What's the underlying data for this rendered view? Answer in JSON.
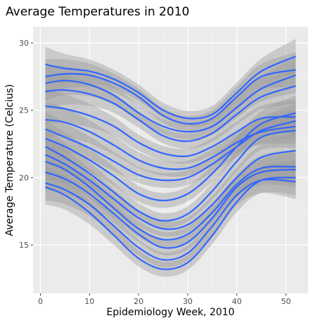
{
  "chart_data": {
    "type": "line",
    "title": "Average Temperatures in 2010",
    "xlabel": "Epidemiology Week, 2010",
    "ylabel": "Average Temperature (Celcius)",
    "xlim": [
      -1.5,
      54.5
    ],
    "ylim": [
      11.4,
      31.2
    ],
    "xticks": [
      0,
      10,
      20,
      30,
      40,
      50
    ],
    "yticks": [
      15,
      20,
      25,
      30
    ],
    "grid": true,
    "legend": "none",
    "colors": {
      "panel": "#ebebeb",
      "grid_major": "#ffffff",
      "line": "#3366ff",
      "ribbon": "#999999",
      "tick_label": "#4d4d4d"
    },
    "x": [
      1,
      5,
      10,
      15,
      20,
      25,
      30,
      35,
      40,
      45,
      52
    ],
    "series": [
      {
        "values": [
          28.4,
          28.1,
          27.9,
          27.3,
          26.3,
          25.0,
          24.4,
          24.7,
          26.3,
          27.9,
          29.0
        ]
      },
      {
        "values": [
          27.5,
          27.7,
          27.6,
          27.0,
          26.0,
          24.6,
          24.0,
          24.4,
          26.0,
          27.5,
          28.0
        ]
      },
      {
        "values": [
          27.0,
          27.2,
          26.9,
          26.1,
          24.8,
          23.8,
          23.4,
          23.8,
          25.2,
          26.6,
          27.6
        ]
      },
      {
        "values": [
          26.4,
          26.5,
          26.2,
          25.5,
          24.3,
          23.1,
          22.7,
          23.3,
          24.7,
          26.0,
          26.8
        ]
      },
      {
        "values": [
          25.3,
          25.1,
          24.6,
          23.8,
          22.6,
          21.8,
          21.6,
          22.3,
          23.4,
          24.4,
          24.5
        ]
      },
      {
        "values": [
          24.3,
          24.1,
          23.4,
          22.4,
          21.3,
          20.7,
          20.7,
          21.5,
          22.6,
          23.4,
          23.8
        ]
      },
      {
        "values": [
          23.6,
          23.0,
          22.2,
          21.2,
          20.2,
          19.8,
          20.0,
          21.0,
          22.3,
          23.5,
          24.2
        ]
      },
      {
        "values": [
          22.9,
          22.3,
          21.3,
          20.1,
          18.8,
          18.3,
          18.8,
          20.3,
          22.3,
          24.0,
          24.8
        ]
      },
      {
        "values": [
          22.3,
          21.5,
          20.3,
          18.9,
          17.5,
          16.8,
          17.3,
          19.0,
          21.2,
          23.0,
          23.5
        ]
      },
      {
        "values": [
          21.7,
          21.0,
          19.8,
          18.4,
          17.0,
          16.2,
          16.5,
          18.0,
          20.0,
          21.5,
          22.0
        ]
      },
      {
        "values": [
          21.2,
          20.6,
          19.3,
          17.7,
          16.2,
          15.4,
          15.8,
          17.4,
          19.5,
          20.7,
          20.8
        ]
      },
      {
        "values": [
          20.4,
          19.9,
          18.8,
          17.3,
          15.8,
          14.8,
          15.2,
          17.0,
          19.3,
          20.4,
          20.6
        ]
      },
      {
        "values": [
          19.6,
          19.1,
          18.0,
          16.4,
          14.8,
          13.9,
          14.4,
          16.4,
          18.7,
          19.8,
          19.7
        ]
      },
      {
        "values": [
          19.3,
          18.7,
          17.4,
          15.7,
          14.0,
          13.2,
          13.7,
          15.7,
          18.2,
          19.8,
          20.0
        ]
      }
    ]
  }
}
